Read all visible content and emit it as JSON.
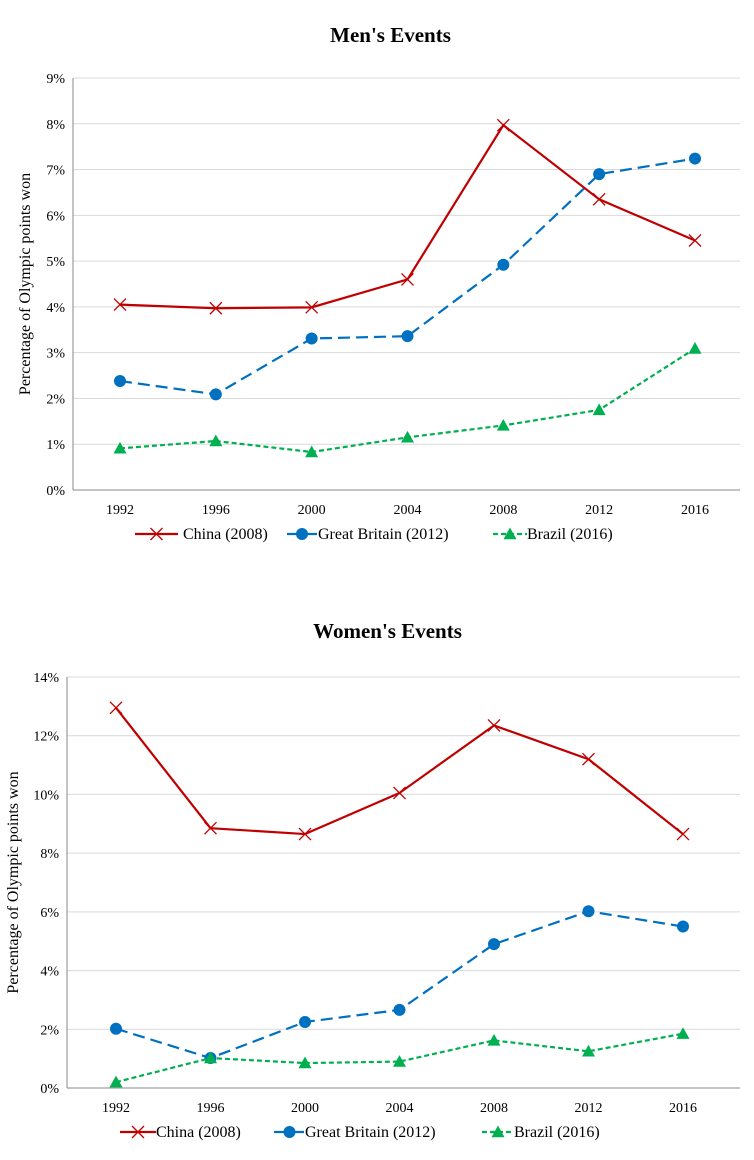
{
  "chart_data": [
    {
      "type": "line",
      "title": "Men's Events",
      "xlabel": "",
      "ylabel": "Percentage of Olympic points won",
      "categories": [
        "1992",
        "1996",
        "2000",
        "2004",
        "2008",
        "2012",
        "2016"
      ],
      "ylim": [
        0,
        9
      ],
      "yticks": [
        "0%",
        "1%",
        "2%",
        "3%",
        "4%",
        "5%",
        "6%",
        "7%",
        "8%",
        "9%"
      ],
      "grid": true,
      "legend_position": "bottom",
      "series": [
        {
          "name": "China (2008)",
          "values": [
            4.05,
            3.97,
            3.99,
            4.6,
            7.97,
            6.35,
            5.45
          ],
          "color": "#c00000",
          "dash": "solid",
          "marker": "x"
        },
        {
          "name": "Great Britain (2012)",
          "values": [
            2.38,
            2.09,
            3.31,
            3.36,
            4.92,
            6.9,
            7.24
          ],
          "color": "#0070c0",
          "dash": "long",
          "marker": "circle"
        },
        {
          "name": "Brazil (2016)",
          "values": [
            0.91,
            1.07,
            0.83,
            1.15,
            1.41,
            1.75,
            3.09
          ],
          "color": "#00b050",
          "dash": "short",
          "marker": "triangle"
        }
      ]
    },
    {
      "type": "line",
      "title": "Women's Events",
      "xlabel": "",
      "ylabel": "Percentage of Olympic points won",
      "categories": [
        "1992",
        "1996",
        "2000",
        "2004",
        "2008",
        "2012",
        "2016"
      ],
      "ylim": [
        0,
        14
      ],
      "yticks": [
        "0%",
        "2%",
        "4%",
        "6%",
        "8%",
        "10%",
        "12%",
        "14%"
      ],
      "grid": true,
      "legend_position": "bottom",
      "series": [
        {
          "name": "China (2008)",
          "values": [
            12.95,
            8.85,
            8.65,
            10.05,
            12.35,
            11.2,
            8.65
          ],
          "color": "#c00000",
          "dash": "solid",
          "marker": "x"
        },
        {
          "name": "Great Britain (2012)",
          "values": [
            2.02,
            1.02,
            2.25,
            2.66,
            4.9,
            6.02,
            5.5
          ],
          "color": "#0070c0",
          "dash": "long",
          "marker": "circle"
        },
        {
          "name": "Brazil (2016)",
          "values": [
            0.2,
            1.02,
            0.85,
            0.9,
            1.62,
            1.25,
            1.85
          ],
          "color": "#00b050",
          "dash": "short",
          "marker": "triangle"
        }
      ]
    }
  ]
}
